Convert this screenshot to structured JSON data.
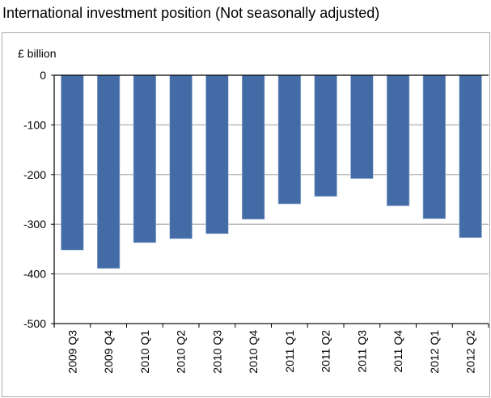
{
  "chart_data": {
    "type": "bar",
    "title": "International investment position (Not seasonally adjusted)",
    "ylabel": "£ billion",
    "xlabel": "",
    "ylim": [
      -500,
      0
    ],
    "yticks": [
      0,
      -100,
      -200,
      -300,
      -400,
      -500
    ],
    "grid": true,
    "categories": [
      "2009 Q3",
      "2009 Q4",
      "2010 Q1",
      "2010 Q2",
      "2010 Q3",
      "2010 Q4",
      "2011 Q1",
      "2011 Q2",
      "2011 Q3",
      "2011 Q4",
      "2012 Q1",
      "2012 Q2"
    ],
    "values": [
      -352,
      -389,
      -337,
      -329,
      -319,
      -290,
      -259,
      -244,
      -208,
      -263,
      -289,
      -327
    ],
    "bar_color": "#436BA5"
  }
}
